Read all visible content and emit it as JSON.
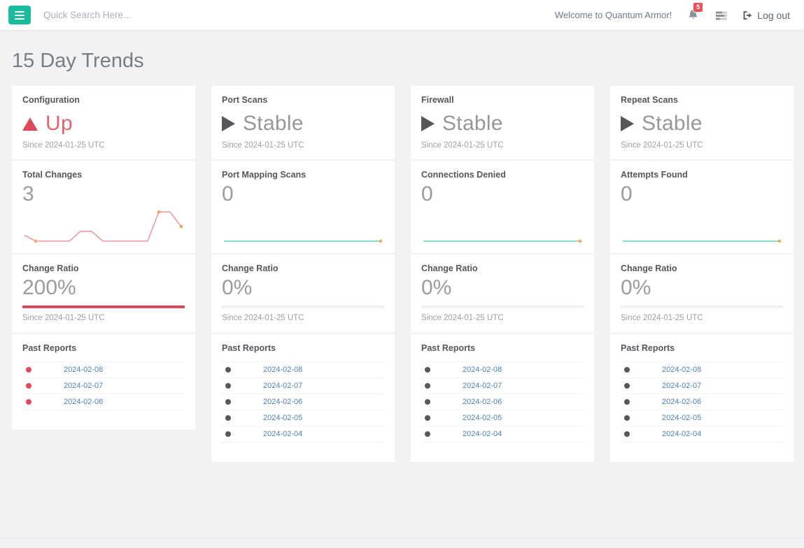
{
  "topbar": {
    "search_placeholder": "Quick Search Here...",
    "welcome_text": "Welcome to Quantum Armor!",
    "notifications_count": "5",
    "logout_label": "Log out"
  },
  "page_title": "15 Day Trends",
  "colors": {
    "accent_green": "#1ABB9C",
    "badge_red": "#E8505B",
    "link_blue": "#4F82B0",
    "status_red": "#DD4B5B",
    "status_gray": "#95989B"
  },
  "cards": [
    {
      "title": "Configuration",
      "status": "Up",
      "status_icon": "triangle-up",
      "status_icon_color": "#DD4B5B",
      "status_text_color": "#E2646F",
      "since": "Since 2024-01-25 UTC",
      "metric_label": "Total Changes",
      "metric_value": "3",
      "ratio_label": "Change Ratio",
      "ratio_value": "200%",
      "ratio_bar_percent": 100,
      "ratio_bar_color": "#DD4B5B",
      "ratio_since": "Since 2024-01-25 UTC",
      "reports_label": "Past Reports",
      "report_dot_color": "#DD4B5B",
      "reports": [
        "2024-02-08",
        "2024-02-07",
        "2024-02-06"
      ]
    },
    {
      "title": "Port Scans",
      "status": "Stable",
      "status_icon": "triangle-right",
      "status_icon_color": "#54565A",
      "status_text_color": "#95989B",
      "since": "Since 2024-01-25 UTC",
      "metric_label": "Port Mapping Scans",
      "metric_value": "0",
      "ratio_label": "Change Ratio",
      "ratio_value": "0%",
      "ratio_bar_percent": 0,
      "ratio_bar_color": "#EDEFF2",
      "ratio_since": "Since 2024-01-25 UTC",
      "reports_label": "Past Reports",
      "report_dot_color": "#57585A",
      "reports": [
        "2024-02-08",
        "2024-02-07",
        "2024-02-06",
        "2024-02-05",
        "2024-02-04"
      ]
    },
    {
      "title": "Firewall",
      "status": "Stable",
      "status_icon": "triangle-right",
      "status_icon_color": "#54565A",
      "status_text_color": "#95989B",
      "since": "Since 2024-01-25 UTC",
      "metric_label": "Connections Denied",
      "metric_value": "0",
      "ratio_label": "Change Ratio",
      "ratio_value": "0%",
      "ratio_bar_percent": 0,
      "ratio_bar_color": "#EDEFF2",
      "ratio_since": "Since 2024-01-25 UTC",
      "reports_label": "Past Reports",
      "report_dot_color": "#57585A",
      "reports": [
        "2024-02-08",
        "2024-02-07",
        "2024-02-06",
        "2024-02-05",
        "2024-02-04"
      ]
    },
    {
      "title": "Repeat Scans",
      "status": "Stable",
      "status_icon": "triangle-right",
      "status_icon_color": "#54565A",
      "status_text_color": "#95989B",
      "since": "Since 2024-01-25 UTC",
      "metric_label": "Attempts Found",
      "metric_value": "0",
      "ratio_label": "Change Ratio",
      "ratio_value": "0%",
      "ratio_bar_percent": 0,
      "ratio_bar_color": "#EDEFF2",
      "ratio_since": "Since 2024-01-25 UTC",
      "reports_label": "Past Reports",
      "report_dot_color": "#57585A",
      "reports": [
        "2024-02-08",
        "2024-02-07",
        "2024-02-06",
        "2024-02-05",
        "2024-02-04"
      ]
    }
  ],
  "chart_data": [
    {
      "type": "line",
      "title": "Total Changes sparkline (Configuration card)",
      "values": [
        0.6,
        0,
        0,
        0,
        0,
        1,
        1,
        0,
        0,
        0,
        0,
        0,
        3,
        3,
        1.5
      ],
      "ylim": [
        0,
        3.3
      ],
      "line_color": "#EB9AA4",
      "marker_color": "#F7A54A",
      "marker_indices": [
        1,
        12,
        14
      ],
      "grid": false,
      "axes_shown": false
    },
    {
      "type": "line",
      "title": "Port Mapping Scans sparkline (Port Scans card)",
      "values": [
        0,
        0,
        0,
        0,
        0,
        0,
        0,
        0,
        0,
        0,
        0,
        0,
        0,
        0,
        0
      ],
      "ylim": [
        0,
        1
      ],
      "line_color": "#63D0B8",
      "marker_color": "#F7A54A",
      "marker_indices": [
        14
      ],
      "grid": false,
      "axes_shown": false
    },
    {
      "type": "line",
      "title": "Connections Denied sparkline (Firewall card)",
      "values": [
        0,
        0,
        0,
        0,
        0,
        0,
        0,
        0,
        0,
        0,
        0,
        0,
        0,
        0,
        0
      ],
      "ylim": [
        0,
        1
      ],
      "line_color": "#63D0B8",
      "marker_color": "#F7A54A",
      "marker_indices": [
        14
      ],
      "grid": false,
      "axes_shown": false
    },
    {
      "type": "line",
      "title": "Attempts Found sparkline (Repeat Scans card)",
      "values": [
        0,
        0,
        0,
        0,
        0,
        0,
        0,
        0,
        0,
        0,
        0,
        0,
        0,
        0,
        0
      ],
      "ylim": [
        0,
        1
      ],
      "line_color": "#63D0B8",
      "marker_color": "#F7A54A",
      "marker_indices": [
        14
      ],
      "grid": false,
      "axes_shown": false
    }
  ]
}
